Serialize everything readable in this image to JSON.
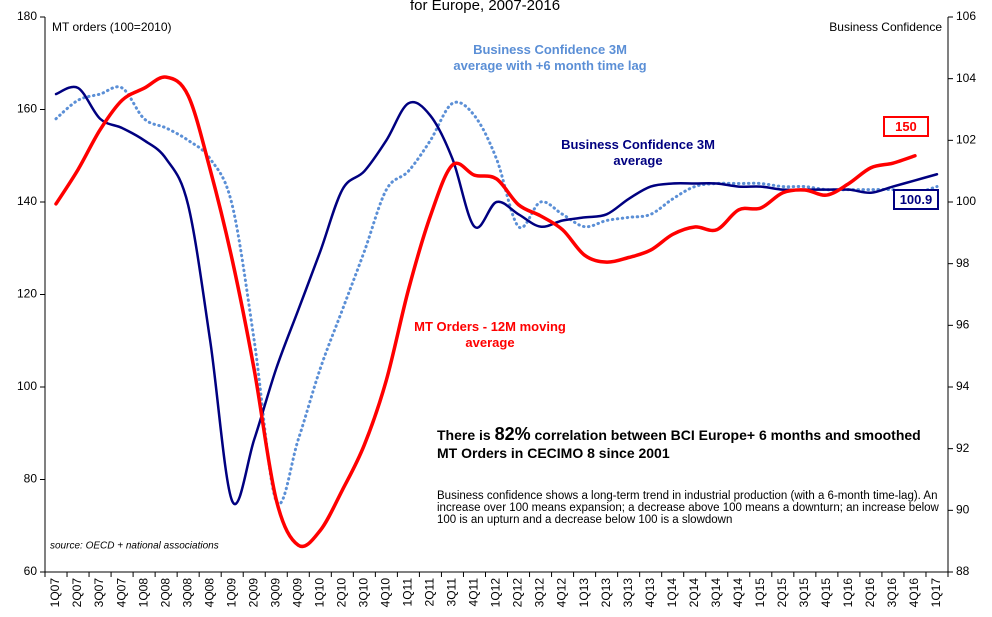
{
  "chart_data": {
    "type": "line",
    "title": "for Europe, 2007-2016",
    "ylabel": "MT orders (100=2010)",
    "y2label": "Business Confidence",
    "categories": [
      "1Q07",
      "2Q07",
      "3Q07",
      "4Q07",
      "1Q08",
      "2Q08",
      "3Q08",
      "4Q08",
      "1Q09",
      "2Q09",
      "3Q09",
      "4Q09",
      "1Q10",
      "2Q10",
      "3Q10",
      "4Q10",
      "1Q11",
      "2Q11",
      "3Q11",
      "4Q11",
      "1Q12",
      "2Q12",
      "3Q12",
      "4Q12",
      "1Q13",
      "2Q13",
      "3Q13",
      "4Q13",
      "1Q14",
      "2Q14",
      "3Q14",
      "4Q14",
      "1Q15",
      "2Q15",
      "3Q15",
      "4Q15",
      "1Q16",
      "2Q16",
      "3Q16",
      "4Q16",
      "1Q17"
    ],
    "series": [
      {
        "name": "MT Orders - 12M moving average",
        "color": "#ff0000",
        "axis": "y",
        "values": [
          139.6,
          147,
          155.6,
          162,
          164.6,
          167,
          163,
          147,
          127.5,
          103.7,
          75.6,
          65.8,
          69,
          77.7,
          87.5,
          101.5,
          121,
          137,
          148,
          145.8,
          145,
          139.4,
          137,
          134,
          128.5,
          127,
          128,
          129.6,
          133,
          134.6,
          134,
          138.3,
          138.7,
          142,
          142.6,
          141.5,
          144,
          147.4,
          148.4,
          150,
          null
        ]
      },
      {
        "name": "Business Confidence 3M average",
        "color": "#000080",
        "axis": "y2",
        "values": [
          103.5,
          103.7,
          102.7,
          102.4,
          102,
          101.4,
          99.9,
          95.5,
          90.3,
          92.3,
          94.6,
          96.5,
          98.4,
          100.4,
          101,
          102,
          103.2,
          102.8,
          101.4,
          99.2,
          100,
          99.6,
          99.2,
          99.4,
          99.5,
          99.6,
          100.1,
          100.5,
          100.6,
          100.6,
          100.6,
          100.5,
          100.5,
          100.4,
          100.4,
          100.4,
          100.4,
          100.3,
          100.5,
          100.7,
          100.9
        ]
      },
      {
        "name": "Business Confidence 3M average with +6 month time lag",
        "color": "#5b8fd6",
        "axis": "y2",
        "dashed": true,
        "values": [
          102.7,
          103.3,
          103.5,
          103.7,
          102.7,
          102.4,
          102,
          101.4,
          99.9,
          95.5,
          90.3,
          92.3,
          94.6,
          96.5,
          98.4,
          100.4,
          101,
          102,
          103.2,
          102.8,
          101.4,
          99.2,
          100,
          99.6,
          99.2,
          99.4,
          99.5,
          99.6,
          100.1,
          100.5,
          100.6,
          100.6,
          100.6,
          100.5,
          100.5,
          100.4,
          100.4,
          100.4,
          100.4,
          100.3,
          100.5
        ]
      }
    ],
    "ylim": [
      60,
      180
    ],
    "yticks": [
      60,
      80,
      100,
      120,
      140,
      160,
      180
    ],
    "y2lim": [
      88,
      106
    ],
    "y2ticks": [
      88,
      90,
      92,
      94,
      96,
      98,
      100,
      102,
      104,
      106
    ],
    "end_labels": [
      {
        "series": 0,
        "index": 39
      },
      {
        "series": 1,
        "index": 40
      }
    ],
    "annotations": {
      "correlation": [
        "There is ",
        "82%",
        " correlation between BCI Europe+ 6 months and smoothed MT Orders in CECIMO 8 since 2001"
      ],
      "note": "Business confidence shows a long-term trend in industrial production (with a 6-month time-lag). An increase over 100 means expansion; a decrease above 100 means a downturn; an increase below 100 is an upturn and a decrease below 100 is a slowdown",
      "source": "source: OECD + national associations"
    }
  }
}
